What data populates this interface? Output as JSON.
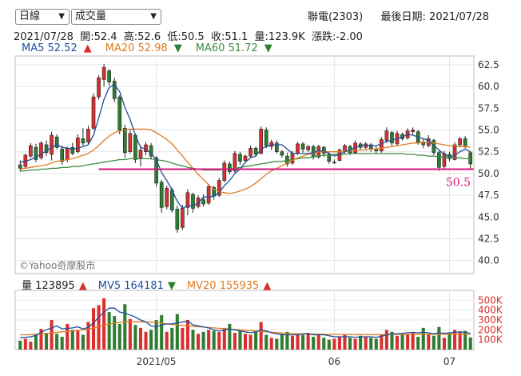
{
  "controls": {
    "period_select": "日線",
    "indicator_select": "成交量"
  },
  "header": {
    "stock": "聯電(2303)",
    "last_date_label": "最後日期: 2021/07/28"
  },
  "ohlc_line": "2021/07/28  開:52.4  高:52.6  低:50.5  收:51.1  量:123.9K  漲跌:-2.00",
  "ma_legend": [
    {
      "label": "MA5 52.52",
      "arrow": "▲",
      "dir": "up",
      "color": "#1f4e9c"
    },
    {
      "label": "MA20 52.98",
      "arrow": "▼",
      "dir": "dn",
      "color": "#e07b22"
    },
    {
      "label": "MA60 51.72",
      "arrow": "▼",
      "dir": "dn",
      "color": "#3d8b40"
    }
  ],
  "vol_legend": [
    {
      "label": "量 123895",
      "arrow": "▲",
      "dir": "up",
      "color": "#222222"
    },
    {
      "label": "MV5 164181",
      "arrow": "▼",
      "dir": "dn",
      "color": "#1f4e9c"
    },
    {
      "label": "MV20 155935",
      "arrow": "▲",
      "dir": "up",
      "color": "#e07b22"
    }
  ],
  "watermark": "©Yahoo奇摩股市",
  "colors": {
    "up": "#d9302f",
    "down": "#2e7d32",
    "ma5": "#1f4e9c",
    "ma20": "#e07b22",
    "ma60": "#3d8b40",
    "support": "#d6157c"
  },
  "chart_data": [
    {
      "type": "candlestick",
      "ylim": [
        38.5,
        63.5
      ],
      "y_ticks": [
        62.5,
        60.0,
        57.5,
        55.0,
        52.5,
        50.0,
        47.5,
        45.0,
        42.5,
        40.0
      ],
      "x_ticks": [
        "2021/05",
        "06",
        "07"
      ],
      "reference_line": {
        "value": 50.5,
        "label": "50.5",
        "from_index": 15
      },
      "ohlc": [
        [
          51.0,
          51.5,
          50.2,
          50.6
        ],
        [
          50.8,
          52.3,
          50.6,
          52.1
        ],
        [
          52.0,
          53.5,
          51.8,
          53.2
        ],
        [
          53.0,
          53.4,
          51.3,
          51.6
        ],
        [
          51.8,
          53.7,
          51.6,
          53.5
        ],
        [
          53.3,
          53.8,
          52.0,
          52.4
        ],
        [
          52.2,
          54.8,
          51.5,
          54.4
        ],
        [
          54.2,
          54.5,
          52.8,
          53.0
        ],
        [
          52.8,
          53.2,
          51.0,
          51.4
        ],
        [
          51.6,
          53.1,
          51.3,
          52.9
        ],
        [
          53.0,
          53.5,
          52.1,
          52.3
        ],
        [
          52.5,
          54.5,
          52.3,
          54.1
        ],
        [
          54.0,
          55.2,
          53.2,
          53.5
        ],
        [
          53.6,
          55.5,
          53.4,
          55.1
        ],
        [
          55.2,
          59.2,
          55.0,
          58.8
        ],
        [
          58.8,
          61.3,
          58.5,
          61.0
        ],
        [
          60.8,
          62.6,
          60.0,
          62.2
        ],
        [
          61.8,
          62.0,
          60.1,
          60.5
        ],
        [
          60.6,
          61.0,
          58.2,
          58.6
        ],
        [
          58.8,
          59.0,
          54.5,
          55.0
        ],
        [
          55.2,
          55.6,
          51.8,
          52.4
        ],
        [
          52.5,
          55.0,
          52.3,
          54.6
        ],
        [
          54.4,
          54.6,
          51.2,
          51.6
        ],
        [
          51.8,
          53.2,
          50.8,
          52.7
        ],
        [
          52.5,
          53.6,
          52.1,
          53.3
        ],
        [
          53.2,
          53.5,
          51.6,
          52.0
        ],
        [
          51.8,
          52.0,
          48.5,
          48.9
        ],
        [
          49.0,
          49.3,
          45.5,
          46.1
        ],
        [
          46.2,
          48.6,
          45.9,
          48.3
        ],
        [
          48.1,
          48.4,
          45.5,
          45.8
        ],
        [
          45.9,
          46.3,
          43.2,
          43.6
        ],
        [
          43.8,
          46.4,
          43.5,
          46.0
        ],
        [
          46.1,
          48.2,
          45.2,
          47.8
        ],
        [
          47.6,
          47.8,
          45.5,
          46.0
        ],
        [
          46.2,
          47.5,
          46.0,
          47.2
        ],
        [
          47.0,
          47.6,
          46.2,
          46.5
        ],
        [
          46.6,
          48.8,
          46.4,
          48.5
        ],
        [
          48.4,
          48.6,
          47.0,
          47.4
        ],
        [
          47.5,
          49.5,
          47.3,
          49.2
        ],
        [
          49.2,
          51.5,
          49.0,
          51.2
        ],
        [
          51.1,
          51.4,
          49.9,
          50.2
        ],
        [
          50.3,
          52.6,
          50.1,
          52.3
        ],
        [
          52.2,
          52.5,
          51.0,
          51.4
        ],
        [
          51.5,
          52.2,
          51.3,
          52.0
        ],
        [
          52.0,
          53.2,
          51.8,
          52.9
        ],
        [
          52.9,
          53.1,
          51.9,
          52.2
        ],
        [
          52.3,
          55.4,
          52.2,
          55.1
        ],
        [
          55.0,
          55.3,
          52.9,
          53.2
        ],
        [
          53.1,
          53.9,
          52.7,
          53.6
        ],
        [
          53.5,
          53.8,
          52.3,
          52.5
        ],
        [
          52.5,
          52.7,
          51.8,
          52.1
        ],
        [
          52.0,
          52.4,
          50.8,
          51.1
        ],
        [
          51.2,
          52.6,
          51.0,
          52.3
        ],
        [
          52.3,
          53.6,
          52.1,
          53.4
        ],
        [
          53.4,
          53.6,
          52.4,
          52.8
        ],
        [
          52.7,
          53.3,
          52.5,
          53.1
        ],
        [
          53.1,
          53.3,
          51.6,
          51.9
        ],
        [
          51.9,
          53.3,
          51.7,
          53.1
        ],
        [
          53.0,
          53.2,
          51.9,
          52.3
        ],
        [
          52.2,
          52.5,
          51.1,
          51.4
        ],
        [
          51.3,
          51.6,
          51.1,
          51.3
        ],
        [
          51.5,
          52.9,
          51.4,
          52.7
        ],
        [
          52.6,
          53.4,
          52.3,
          53.2
        ],
        [
          53.1,
          53.3,
          52.1,
          52.4
        ],
        [
          52.4,
          53.8,
          52.2,
          53.5
        ],
        [
          53.4,
          53.6,
          52.7,
          53.0
        ],
        [
          53.0,
          53.6,
          52.8,
          53.4
        ],
        [
          53.3,
          53.5,
          52.5,
          52.8
        ],
        [
          52.8,
          53.1,
          52.3,
          52.6
        ],
        [
          52.6,
          54.2,
          52.4,
          53.9
        ],
        [
          53.8,
          55.3,
          53.5,
          54.9
        ],
        [
          54.7,
          54.9,
          53.2,
          53.5
        ],
        [
          53.4,
          54.9,
          53.2,
          54.6
        ],
        [
          54.5,
          54.7,
          53.8,
          54.0
        ],
        [
          54.1,
          55.2,
          53.9,
          54.9
        ],
        [
          54.8,
          55.3,
          54.5,
          55.0
        ],
        [
          54.8,
          55.0,
          53.3,
          53.6
        ],
        [
          53.6,
          54.0,
          52.9,
          53.3
        ],
        [
          53.2,
          54.4,
          53.0,
          54.0
        ],
        [
          53.8,
          54.0,
          52.1,
          52.4
        ],
        [
          52.4,
          52.6,
          50.3,
          50.7
        ],
        [
          50.8,
          52.6,
          50.5,
          52.3
        ],
        [
          52.2,
          52.5,
          51.4,
          51.7
        ],
        [
          51.6,
          53.6,
          51.5,
          53.3
        ],
        [
          53.3,
          54.2,
          53.0,
          54.0
        ],
        [
          54.0,
          54.3,
          52.9,
          53.1
        ],
        [
          52.4,
          52.6,
          50.5,
          51.1
        ]
      ],
      "ma5": [
        51.3,
        51.4,
        51.6,
        51.9,
        52.2,
        52.6,
        53.0,
        53.3,
        53.0,
        52.9,
        52.8,
        52.9,
        53.1,
        53.3,
        54.4,
        56.4,
        58.5,
        59.9,
        60.2,
        59.4,
        57.6,
        56.2,
        54.4,
        53.0,
        52.8,
        52.3,
        51.6,
        50.1,
        49.2,
        48.1,
        46.8,
        46.0,
        46.3,
        46.3,
        46.6,
        47.3,
        47.3,
        47.4,
        47.8,
        48.6,
        49.2,
        50.0,
        50.5,
        51.3,
        51.8,
        52.0,
        52.8,
        53.1,
        53.3,
        53.3,
        53.3,
        52.8,
        52.3,
        52.3,
        52.3,
        52.3,
        52.4,
        52.6,
        52.6,
        52.3,
        52.0,
        52.2,
        52.5,
        52.7,
        53.0,
        53.2,
        53.3,
        53.2,
        53.2,
        53.4,
        53.7,
        53.8,
        54.0,
        54.2,
        54.5,
        54.4,
        54.2,
        54.0,
        53.8,
        53.2,
        52.7,
        52.2,
        51.9,
        52.1,
        52.5,
        52.8,
        52.5
      ],
      "ma20": [
        50.5,
        50.6,
        50.7,
        50.8,
        50.9,
        51.0,
        51.2,
        51.4,
        51.5,
        51.6,
        51.7,
        51.9,
        52.1,
        52.3,
        52.7,
        53.2,
        53.8,
        54.3,
        54.7,
        54.9,
        55.0,
        55.1,
        55.1,
        55.1,
        55.1,
        55.0,
        54.7,
        54.3,
        53.9,
        53.4,
        52.7,
        52.0,
        51.3,
        50.6,
        49.9,
        49.3,
        48.7,
        48.2,
        47.9,
        47.8,
        47.7,
        47.8,
        48.0,
        48.2,
        48.5,
        48.9,
        49.4,
        49.9,
        50.3,
        50.6,
        50.9,
        51.2,
        51.5,
        51.8,
        52.0,
        52.2,
        52.3,
        52.5,
        52.5,
        52.5,
        52.5,
        52.5,
        52.6,
        52.6,
        52.7,
        52.7,
        52.7,
        52.8,
        52.8,
        52.9,
        53.0,
        53.1,
        53.2,
        53.3,
        53.4,
        53.5,
        53.5,
        53.6,
        53.6,
        53.5,
        53.4,
        53.3,
        53.2,
        53.2,
        53.1,
        53.1,
        53.0
      ],
      "ma60": [
        50.3,
        50.3,
        50.4,
        50.4,
        50.5,
        50.5,
        50.6,
        50.6,
        50.7,
        50.7,
        50.8,
        50.8,
        50.9,
        51.0,
        51.1,
        51.2,
        51.3,
        51.4,
        51.5,
        51.6,
        51.6,
        51.7,
        51.7,
        51.7,
        51.7,
        51.7,
        51.6,
        51.5,
        51.4,
        51.2,
        51.0,
        50.9,
        50.7,
        50.6,
        50.5,
        50.4,
        50.4,
        50.4,
        50.4,
        50.5,
        50.5,
        50.6,
        50.7,
        50.8,
        50.9,
        51.0,
        51.1,
        51.2,
        51.3,
        51.4,
        51.4,
        51.5,
        51.6,
        51.7,
        51.8,
        51.8,
        51.9,
        52.0,
        52.1,
        52.1,
        52.2,
        52.2,
        52.2,
        52.3,
        52.3,
        52.3,
        52.3,
        52.3,
        52.3,
        52.3,
        52.3,
        52.3,
        52.3,
        52.3,
        52.2,
        52.2,
        52.1,
        52.1,
        52.0,
        52.0,
        51.9,
        51.9,
        51.8,
        51.8,
        51.8,
        51.7,
        51.7
      ]
    },
    {
      "type": "bar",
      "ylim": [
        0,
        600
      ],
      "y_unit": "K",
      "y_ticks": [
        "500K",
        "400K",
        "300K",
        "200K",
        "100K"
      ],
      "y_tick_values": [
        500,
        400,
        300,
        200,
        100
      ],
      "x_ticks": [
        "2021/05",
        "06",
        "07"
      ],
      "volume": [
        90,
        110,
        80,
        150,
        210,
        170,
        300,
        160,
        130,
        260,
        200,
        190,
        150,
        280,
        420,
        450,
        520,
        380,
        340,
        260,
        460,
        310,
        250,
        220,
        180,
        200,
        300,
        350,
        180,
        220,
        360,
        220,
        300,
        200,
        160,
        180,
        200,
        190,
        180,
        220,
        260,
        170,
        200,
        160,
        150,
        190,
        280,
        150,
        120,
        110,
        160,
        180,
        140,
        160,
        150,
        170,
        130,
        160,
        120,
        100,
        110,
        130,
        150,
        120,
        110,
        140,
        130,
        120,
        110,
        150,
        200,
        180,
        140,
        160,
        150,
        170,
        130,
        220,
        150,
        140,
        230,
        120,
        170,
        200,
        180,
        190,
        124
      ],
      "mv5": [
        120,
        125,
        130,
        145,
        175,
        200,
        220,
        240,
        210,
        215,
        220,
        230,
        210,
        225,
        270,
        330,
        380,
        420,
        420,
        380,
        370,
        350,
        330,
        300,
        280,
        240,
        230,
        250,
        260,
        260,
        270,
        280,
        290,
        250,
        240,
        230,
        220,
        200,
        190,
        200,
        210,
        200,
        190,
        180,
        170,
        180,
        200,
        190,
        170,
        160,
        150,
        150,
        150,
        150,
        160,
        160,
        150,
        150,
        150,
        140,
        130,
        130,
        130,
        130,
        125,
        130,
        130,
        130,
        125,
        135,
        150,
        160,
        160,
        165,
        170,
        175,
        170,
        175,
        170,
        160,
        170,
        165,
        170,
        175,
        180,
        175,
        164
      ],
      "mv20": [
        150,
        150,
        152,
        155,
        158,
        162,
        168,
        175,
        180,
        185,
        190,
        195,
        200,
        208,
        220,
        232,
        245,
        258,
        268,
        275,
        280,
        282,
        283,
        282,
        280,
        278,
        275,
        270,
        262,
        255,
        250,
        245,
        240,
        236,
        232,
        228,
        224,
        220,
        216,
        212,
        208,
        204,
        200,
        196,
        192,
        188,
        184,
        180,
        176,
        172,
        168,
        165,
        163,
        161,
        160,
        159,
        158,
        157,
        156,
        155,
        154,
        154,
        153,
        153,
        152,
        152,
        152,
        152,
        152,
        152,
        153,
        153,
        154,
        154,
        155,
        155,
        156,
        156,
        156,
        156,
        156,
        156,
        156,
        156,
        156,
        156,
        156
      ]
    }
  ]
}
